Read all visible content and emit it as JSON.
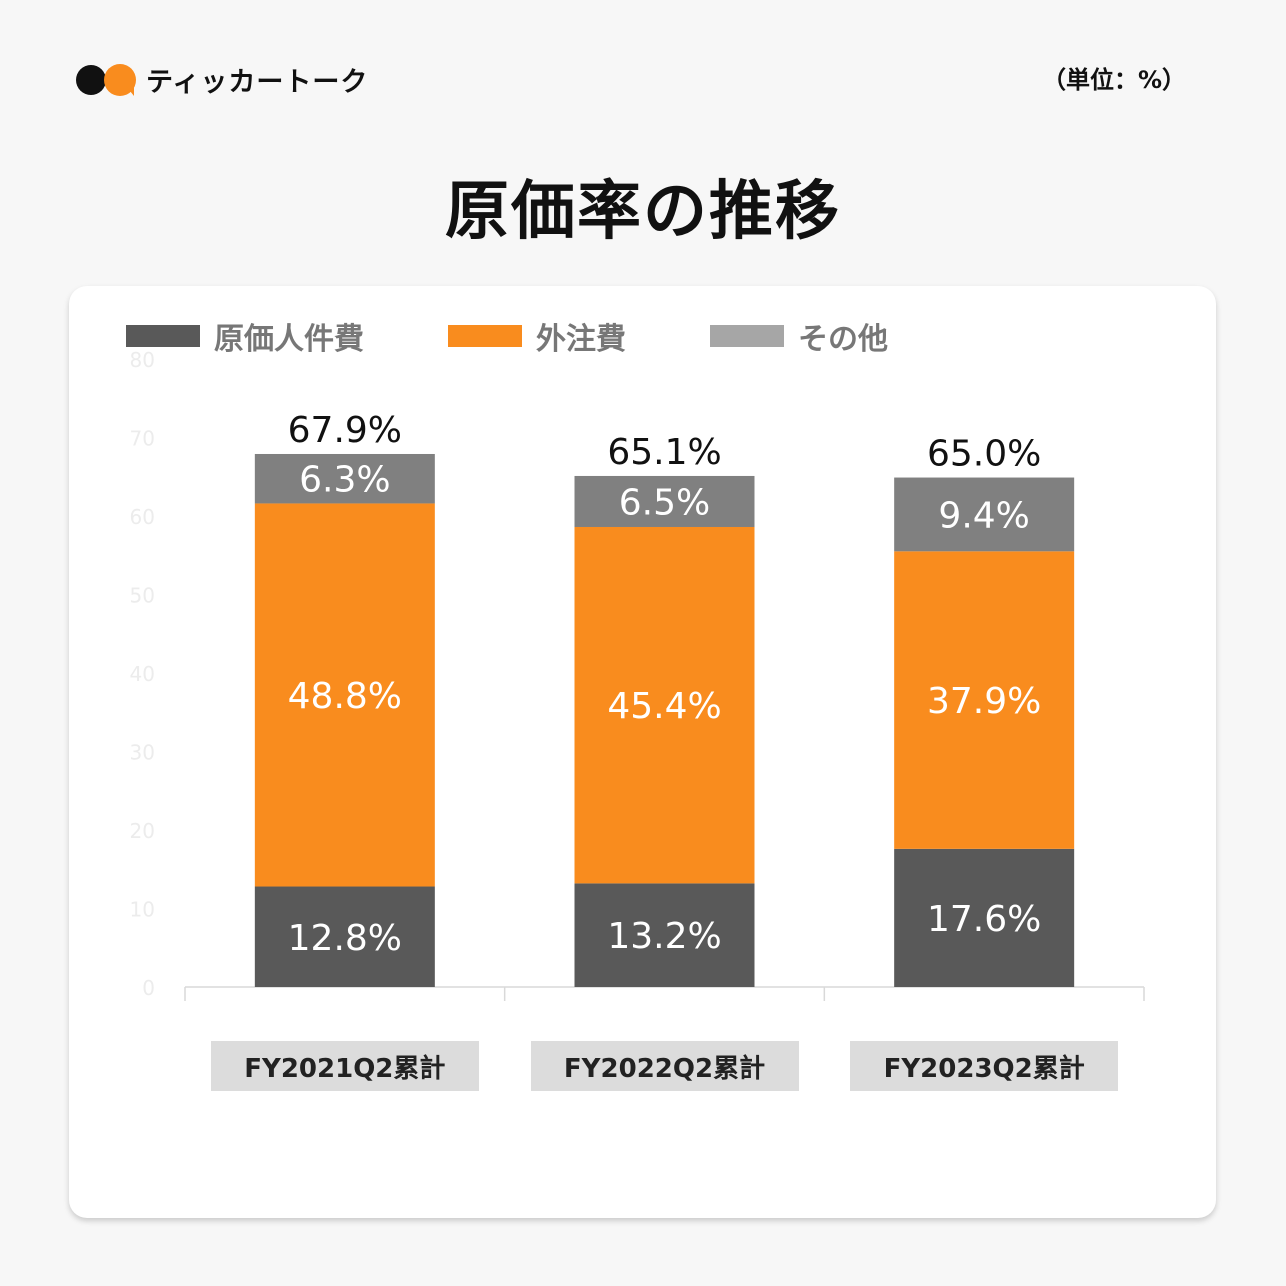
{
  "brand": {
    "name": "ティッカートーク"
  },
  "unit_label": "（単位：%）",
  "title": "原価率の推移",
  "colors": {
    "labor": "#595959",
    "outsourcing": "#f98c1e",
    "other": "#808080",
    "card": "#ffffff",
    "background": "#f7f7f7"
  },
  "legend": [
    {
      "label": "原価人件費",
      "color": "#595959"
    },
    {
      "label": "外注費",
      "color": "#f98c1e"
    },
    {
      "label": "その他",
      "color": "#a6a6a6"
    }
  ],
  "chart_data": {
    "type": "bar",
    "stacked": true,
    "categories": [
      "FY2021Q2累計",
      "FY2022Q2累計",
      "FY2023Q2累計"
    ],
    "series": [
      {
        "name": "原価人件費",
        "values": [
          12.8,
          13.2,
          17.6
        ],
        "labels": [
          "12.8%",
          "13.2%",
          "17.6%"
        ],
        "color": "#595959"
      },
      {
        "name": "外注費",
        "values": [
          48.8,
          45.4,
          37.9
        ],
        "labels": [
          "48.8%",
          "45.4%",
          "37.9%"
        ],
        "color": "#f98c1e"
      },
      {
        "name": "その他",
        "values": [
          6.3,
          6.5,
          9.4
        ],
        "labels": [
          "6.3%",
          "6.5%",
          "9.4%"
        ],
        "color": "#808080"
      }
    ],
    "totals": [
      "67.9%",
      "65.1%",
      "65.0%"
    ],
    "ylim": [
      0,
      80
    ],
    "yticks": [
      "0",
      "10",
      "20",
      "30",
      "40",
      "50",
      "60",
      "70",
      "80"
    ]
  }
}
